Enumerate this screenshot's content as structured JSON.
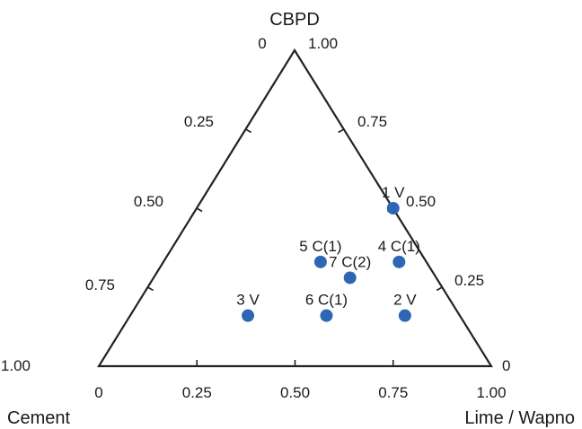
{
  "chart_data": {
    "type": "scatter",
    "subtype": "ternary",
    "vertex_labels": {
      "top": "CBPD",
      "left": "Cement",
      "right": "Lime / Wapno"
    },
    "axes": {
      "bottom": {
        "ticks": [
          "0",
          "0.25",
          "0.50",
          "0.75",
          "1.00"
        ],
        "values": [
          0,
          0.25,
          0.5,
          0.75,
          1.0
        ]
      },
      "left": {
        "ticks": [
          "0",
          "0.25",
          "0.50",
          "0.75",
          "1.00"
        ],
        "values": [
          0,
          0.25,
          0.5,
          0.75,
          1.0
        ]
      },
      "right": {
        "ticks": [
          "1.00",
          "0.75",
          "0.50",
          "0.25",
          "0"
        ],
        "values": [
          1.0,
          0.75,
          0.5,
          0.25,
          0
        ]
      }
    },
    "marker_color": "#2e66b5",
    "points": [
      {
        "label": "1 V",
        "cbpd": 0.5,
        "lime": 0.5
      },
      {
        "label": "2 V",
        "cbpd": 0.16,
        "lime": 0.7
      },
      {
        "label": "3 V",
        "cbpd": 0.16,
        "lime": 0.3
      },
      {
        "label": "4 C(1)",
        "cbpd": 0.33,
        "lime": 0.6
      },
      {
        "label": "5 C(1)",
        "cbpd": 0.33,
        "lime": 0.4
      },
      {
        "label": "6 C(1)",
        "cbpd": 0.16,
        "lime": 0.5
      },
      {
        "label": "7 C(2)",
        "cbpd": 0.28,
        "lime": 0.5
      }
    ]
  }
}
